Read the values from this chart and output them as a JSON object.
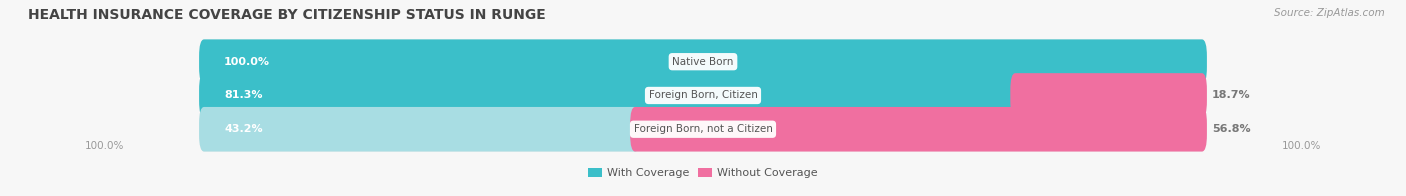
{
  "title": "HEALTH INSURANCE COVERAGE BY CITIZENSHIP STATUS IN RUNGE",
  "source": "Source: ZipAtlas.com",
  "categories": [
    "Native Born",
    "Foreign Born, Citizen",
    "Foreign Born, not a Citizen"
  ],
  "with_coverage": [
    100.0,
    81.3,
    43.2
  ],
  "without_coverage": [
    0.0,
    18.7,
    56.8
  ],
  "color_with": "#3bbfc9",
  "color_with_light": "#a8dde3",
  "color_without": "#f06fa0",
  "bg_color": "#f7f7f7",
  "bar_bg": "#e8e8e8",
  "title_fontsize": 10,
  "source_fontsize": 7.5,
  "label_fontsize": 8,
  "cat_label_fontsize": 7.5,
  "axis_label_fontsize": 7.5,
  "legend_fontsize": 8
}
